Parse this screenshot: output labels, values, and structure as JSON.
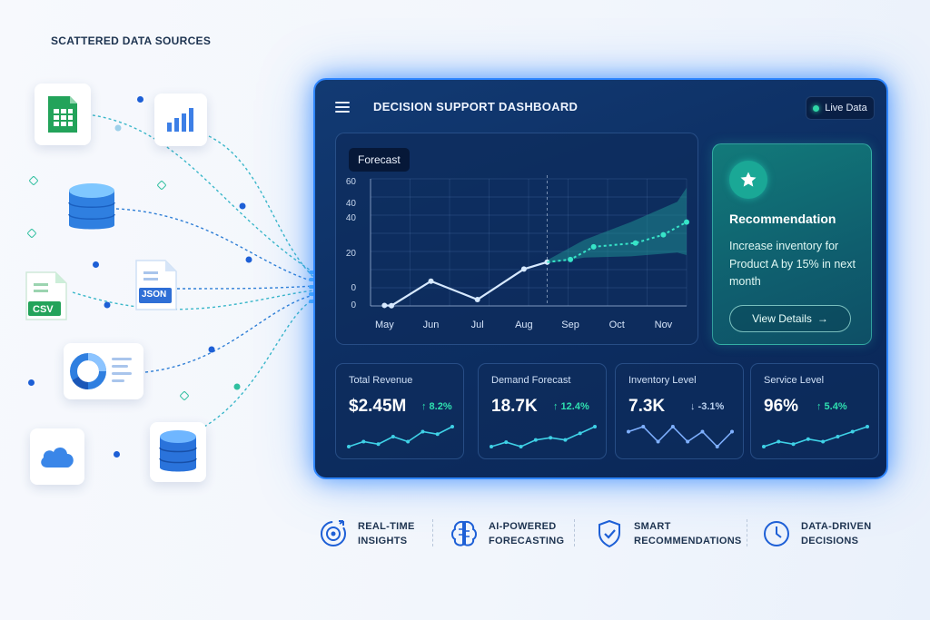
{
  "sources": {
    "title": "SCATTERED DATA SOURCES",
    "items": [
      {
        "name": "spreadsheet",
        "icon": "spreadsheet-icon"
      },
      {
        "name": "bar-chart",
        "icon": "bar-chart-icon"
      },
      {
        "name": "database",
        "icon": "database-icon"
      },
      {
        "name": "csv",
        "icon": "csv-file-icon",
        "label": "CSV"
      },
      {
        "name": "json",
        "icon": "json-file-icon",
        "label": "JSON"
      },
      {
        "name": "donut-report",
        "icon": "donut-chart-icon"
      },
      {
        "name": "cloud",
        "icon": "cloud-icon"
      },
      {
        "name": "database-2",
        "icon": "database-icon"
      }
    ]
  },
  "dashboard": {
    "title": "DECISION SUPPORT DASHBOARD",
    "live_label": "Live Data",
    "forecast_tab": "Forecast"
  },
  "chart_data": {
    "type": "line",
    "categories": [
      "May",
      "Jun",
      "Jul",
      "Aug",
      "Sep",
      "Oct",
      "Nov"
    ],
    "y_ticks": [
      "60",
      "40",
      "40",
      "20",
      "0",
      "0"
    ],
    "actual": [
      {
        "x": 0.0,
        "y": 0.4
      },
      {
        "x": 0.15,
        "y": 0.2
      },
      {
        "x": 1.0,
        "y": 19.5
      },
      {
        "x": 2.0,
        "y": 5.0
      },
      {
        "x": 3.0,
        "y": 29.0
      },
      {
        "x": 3.5,
        "y": 34.5
      }
    ],
    "forecast": [
      {
        "x": 3.5,
        "y": 34.5
      },
      {
        "x": 4.0,
        "y": 36.5
      },
      {
        "x": 4.5,
        "y": 46.5
      },
      {
        "x": 5.4,
        "y": 49.5
      },
      {
        "x": 6.0,
        "y": 56.0
      },
      {
        "x": 6.5,
        "y": 66.0
      }
    ],
    "forecast_upper": [
      {
        "x": 3.5,
        "y": 36.0
      },
      {
        "x": 4.3,
        "y": 52.0
      },
      {
        "x": 5.3,
        "y": 66.0
      },
      {
        "x": 6.3,
        "y": 82.0
      },
      {
        "x": 6.5,
        "y": 93.0
      }
    ],
    "forecast_lower": [
      {
        "x": 3.5,
        "y": 33.5
      },
      {
        "x": 4.3,
        "y": 38.0
      },
      {
        "x": 5.3,
        "y": 39.0
      },
      {
        "x": 6.3,
        "y": 42.0
      },
      {
        "x": 6.5,
        "y": 40.0
      }
    ],
    "grid": true,
    "legend": "none",
    "colors": {
      "actual": "#d7e9ff",
      "forecast": "#37e4c8",
      "band": "#1f8d8f"
    }
  },
  "recommendation": {
    "title": "Recommendation",
    "body": "Increase inventory for Product A by 15% in next month",
    "button": "View Details",
    "button_arrow": "→"
  },
  "kpis": [
    {
      "label": "Total Revenue",
      "value": "$2.45M",
      "delta": "↑ 8.2%",
      "trend": "up",
      "spark": [
        3,
        5,
        4,
        7,
        5,
        9,
        8,
        11
      ]
    },
    {
      "label": "Demand Forecast",
      "value": "18.7K",
      "delta": "↑ 12.4%",
      "trend": "up",
      "spark": [
        3,
        5,
        3,
        6,
        7,
        6,
        9,
        12
      ]
    },
    {
      "label": "Inventory Level",
      "value": "7.3K",
      "delta": "↓ -3.1%",
      "trend": "down",
      "spark": [
        8,
        9,
        6,
        9,
        6,
        8,
        5,
        8
      ]
    },
    {
      "label": "Service Level",
      "value": "96%",
      "delta": "↑ 5.4%",
      "trend": "up",
      "spark": [
        3,
        5,
        4,
        6,
        5,
        7,
        9,
        11
      ]
    }
  ],
  "features": [
    {
      "line1": "REAL-TIME",
      "line2": "INSIGHTS",
      "icon": "target-icon"
    },
    {
      "line1": "AI-POWERED",
      "line2": "FORECASTING",
      "icon": "brain-icon"
    },
    {
      "line1": "SMART",
      "line2": "RECOMMENDATIONS",
      "icon": "shield-check-icon"
    },
    {
      "line1": "DATA-DRIVEN",
      "line2": "DECISIONS",
      "icon": "clock-icon"
    }
  ],
  "theme": {
    "accent": "#2f86ff",
    "teal": "#2fd6a6",
    "panel": "#0d2f63"
  }
}
